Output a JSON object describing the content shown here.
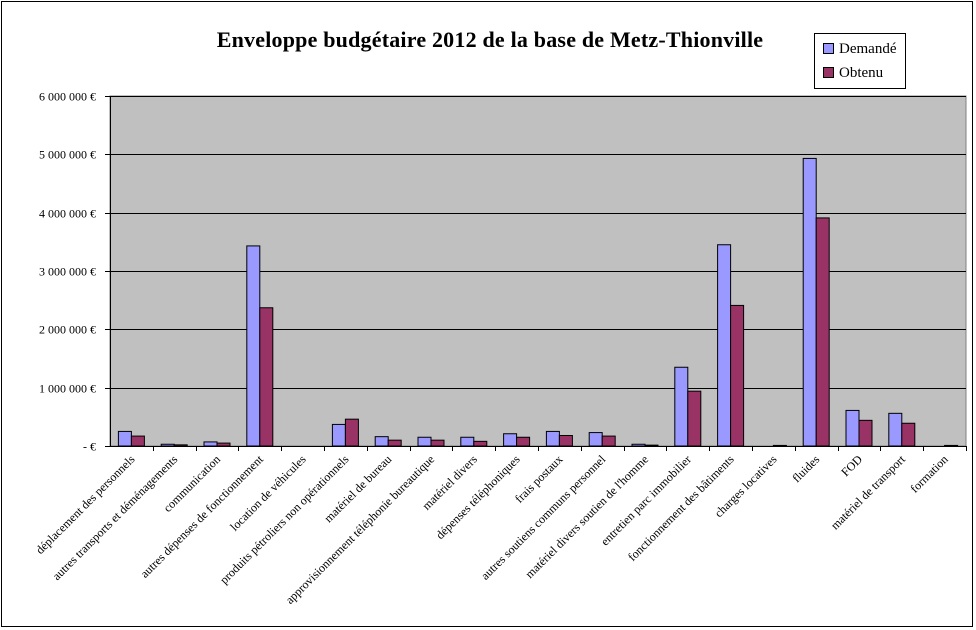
{
  "chart_data": {
    "type": "bar",
    "title": "Enveloppe budgétaire 2012 de la base de Metz-Thionville",
    "xlabel": "",
    "ylabel": "",
    "ylim": [
      0,
      6000000
    ],
    "yticks": [
      0,
      1000000,
      2000000,
      3000000,
      4000000,
      5000000,
      6000000
    ],
    "ytick_labels": [
      "- €",
      "1 000 000 €",
      "2 000 000 €",
      "3 000 000 €",
      "4 000 000 €",
      "5 000 000 €",
      "6 000 000 €"
    ],
    "grid": true,
    "legend_position": "top-right",
    "categories": [
      "déplacement des personnels",
      "autres transports et déménagements",
      "communication",
      "autres dépenses de fonctionnement",
      "location de véhicules",
      "produits pétroliers non opérationnels",
      "matériel de bureau",
      "approvisionnement téléphonie bureautique",
      "matériel divers",
      "dépenses téléphoniques",
      "frais postaux",
      "autres soutiens communs personnel",
      "matériel divers soutien de l'homme",
      "entretien parc immobilier",
      "fonctionnement des bâtiments",
      "charges locatives",
      "fluides",
      "FOD",
      "matériel de transport",
      "formation"
    ],
    "series": [
      {
        "name": "Demandé",
        "color": "#9999ff",
        "values": [
          250000,
          30000,
          70000,
          3430000,
          0,
          370000,
          160000,
          150000,
          150000,
          210000,
          250000,
          230000,
          30000,
          1350000,
          3450000,
          0,
          4930000,
          610000,
          560000,
          0
        ]
      },
      {
        "name": "Obtenu",
        "color": "#993366",
        "values": [
          170000,
          20000,
          50000,
          2370000,
          0,
          460000,
          100000,
          100000,
          80000,
          150000,
          180000,
          170000,
          15000,
          940000,
          2410000,
          10000,
          3910000,
          440000,
          390000,
          10000
        ]
      }
    ],
    "plot_background": "#c0c0c0"
  }
}
